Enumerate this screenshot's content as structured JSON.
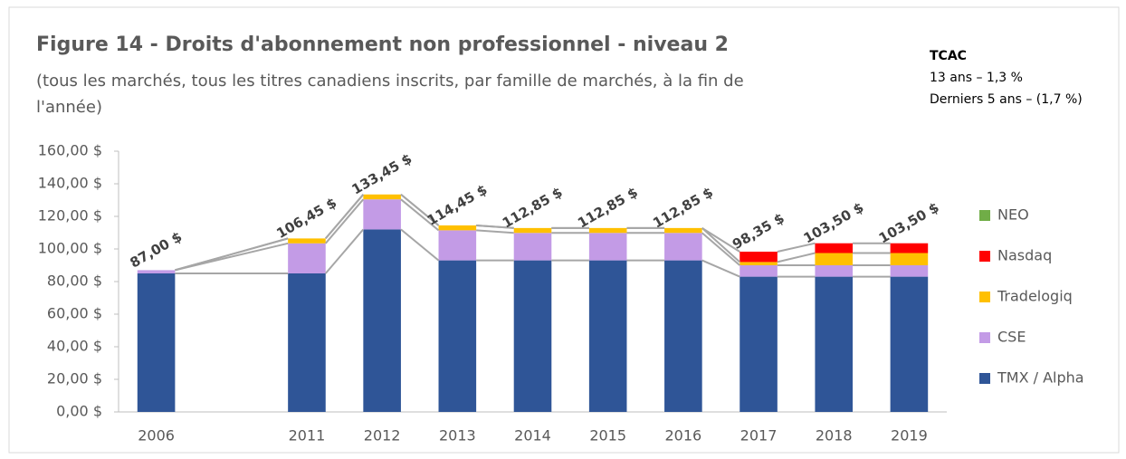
{
  "chart_data": {
    "type": "stacked_bar",
    "title": "Figure 14 - Droits d'abonnement non professionnel - niveau 2",
    "subtitle": [
      "(tous les marchés, tous les titres canadiens inscrits, par famille de marchés, à la fin de",
      "l'année)"
    ],
    "annotation": [
      "TCAC",
      "13 ans – 1,3 %",
      "Derniers 5 ans – (1,7 %)"
    ],
    "categories": [
      "2006",
      null,
      "2011",
      "2012",
      "2013",
      "2014",
      "2015",
      "2016",
      "2017",
      "2018",
      "2019"
    ],
    "series": [
      {
        "name": "TMX / Alpha",
        "color": "#2f5597",
        "values": [
          85,
          null,
          85,
          112,
          93,
          93,
          93,
          93,
          83,
          83,
          83
        ]
      },
      {
        "name": "CSE",
        "color": "#c39be6",
        "values": [
          2,
          null,
          18.45,
          18.45,
          18.45,
          16.85,
          16.85,
          16.85,
          7,
          7,
          7
        ]
      },
      {
        "name": "Tradelogiq",
        "color": "#ffc000",
        "values": [
          0,
          null,
          3,
          3,
          3,
          3,
          3,
          3,
          2,
          7.5,
          7.5
        ]
      },
      {
        "name": "Nasdaq",
        "color": "#ff0000",
        "values": [
          0,
          null,
          0,
          0,
          0,
          0,
          0,
          0,
          6.35,
          6,
          6
        ]
      },
      {
        "name": "NEO",
        "color": "#70ad47",
        "values": [
          0,
          null,
          0,
          0,
          0,
          0,
          0,
          0,
          0,
          0,
          0
        ]
      }
    ],
    "totals": [
      87,
      null,
      106.45,
      133.45,
      114.45,
      112.85,
      112.85,
      112.85,
      98.35,
      103.5,
      103.5
    ],
    "total_labels": [
      "87,00 $",
      null,
      "106,45 $",
      "133,45 $",
      "114,45 $",
      "112,85 $",
      "112,85 $",
      "112,85 $",
      "98,35 $",
      "103,50 $",
      "103,50 $"
    ],
    "ylim": [
      0,
      160
    ],
    "yticks": [
      {
        "value": 0,
        "label": "0,00 $"
      },
      {
        "value": 20,
        "label": "20,00 $"
      },
      {
        "value": 40,
        "label": "40,00 $"
      },
      {
        "value": 60,
        "label": "60,00 $"
      },
      {
        "value": 80,
        "label": "80,00 $"
      },
      {
        "value": 100,
        "label": "100,00 $"
      },
      {
        "value": 120,
        "label": "120,00 $"
      },
      {
        "value": 140,
        "label": "140,00 $"
      },
      {
        "value": 160,
        "label": "160,00 $"
      }
    ],
    "legend": "right"
  }
}
